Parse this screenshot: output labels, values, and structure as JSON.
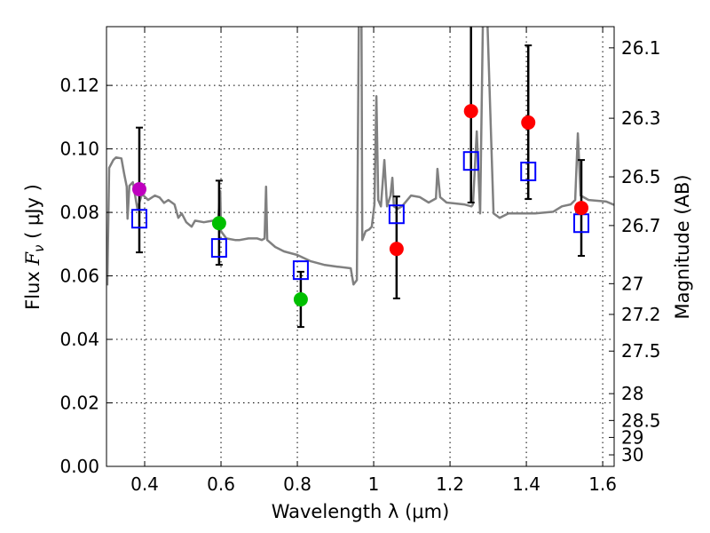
{
  "chart_data": {
    "type": "scatter",
    "xlabel": "Wavelength  λ (μm)",
    "ylabel": "Flux  F_ν  ( μJy )",
    "ylabel_parts": {
      "prefix": "Flux  ",
      "var": "F",
      "sub": "ν",
      "suffix": "  ( μJy )"
    },
    "y2label": "Magnitude (AB)",
    "xlim": [
      0.3,
      1.63
    ],
    "ylim": [
      0.0,
      0.1385
    ],
    "grid": true,
    "xticks": [
      0.4,
      0.6,
      0.8,
      1.0,
      1.2,
      1.4,
      1.6
    ],
    "xtick_labels": [
      "0.4",
      "0.6",
      "0.8",
      "1",
      "1.2",
      "1.4",
      "1.6"
    ],
    "yticks": [
      0,
      0.02,
      0.04,
      0.06,
      0.08,
      0.1,
      0.12
    ],
    "ytick_labels": [
      "0.00",
      "0.02",
      "0.04",
      "0.06",
      "0.08",
      "0.10",
      "0.12"
    ],
    "y2ticks": [
      26.1,
      26.3,
      26.5,
      26.7,
      27,
      27.2,
      27.5,
      28,
      28.5,
      29,
      30
    ],
    "y2tick_labels": [
      "26.1",
      "26.3",
      "26.5",
      "26.7",
      "27",
      "27.2",
      "27.5",
      "28",
      "28.5",
      "29",
      "30"
    ],
    "observed": [
      {
        "x": 0.386,
        "y": 0.0873,
        "ylo": 0.0674,
        "yhi": 0.1067,
        "color": "#bf00bf"
      },
      {
        "x": 0.595,
        "y": 0.0766,
        "ylo": 0.0635,
        "yhi": 0.09,
        "color": "#00bf00"
      },
      {
        "x": 0.809,
        "y": 0.0526,
        "ylo": 0.0439,
        "yhi": 0.0613,
        "color": "#00bf00"
      },
      {
        "x": 1.06,
        "y": 0.0685,
        "ylo": 0.0529,
        "yhi": 0.085,
        "color": "#ff0000"
      },
      {
        "x": 1.255,
        "y": 0.1119,
        "ylo": 0.0831,
        "yhi": 0.145,
        "color": "#ff0000"
      },
      {
        "x": 1.405,
        "y": 0.1083,
        "ylo": 0.0842,
        "yhi": 0.1326,
        "color": "#ff0000"
      },
      {
        "x": 1.544,
        "y": 0.0814,
        "ylo": 0.0663,
        "yhi": 0.0965,
        "color": "#ff0000"
      }
    ],
    "model": [
      {
        "x": 0.386,
        "y": 0.078
      },
      {
        "x": 0.595,
        "y": 0.0688
      },
      {
        "x": 0.809,
        "y": 0.0618
      },
      {
        "x": 1.06,
        "y": 0.0794
      },
      {
        "x": 1.255,
        "y": 0.0962
      },
      {
        "x": 1.405,
        "y": 0.0929
      },
      {
        "x": 1.544,
        "y": 0.0766
      }
    ],
    "model_color": "#0000ff",
    "spectrum_color": "#808080",
    "spectrum": [
      [
        0.302,
        0.057
      ],
      [
        0.307,
        0.094
      ],
      [
        0.318,
        0.0965
      ],
      [
        0.325,
        0.0973
      ],
      [
        0.339,
        0.097
      ],
      [
        0.346,
        0.0923
      ],
      [
        0.353,
        0.0881
      ],
      [
        0.355,
        0.078
      ],
      [
        0.36,
        0.0884
      ],
      [
        0.369,
        0.0895
      ],
      [
        0.381,
        0.0811
      ],
      [
        0.393,
        0.0858
      ],
      [
        0.409,
        0.0839
      ],
      [
        0.427,
        0.0853
      ],
      [
        0.439,
        0.0847
      ],
      [
        0.451,
        0.083
      ],
      [
        0.462,
        0.0839
      ],
      [
        0.478,
        0.0825
      ],
      [
        0.488,
        0.0783
      ],
      [
        0.497,
        0.0797
      ],
      [
        0.509,
        0.0769
      ],
      [
        0.523,
        0.0755
      ],
      [
        0.532,
        0.0774
      ],
      [
        0.555,
        0.0769
      ],
      [
        0.579,
        0.0774
      ],
      [
        0.591,
        0.0755
      ],
      [
        0.598,
        0.0867
      ],
      [
        0.6,
        0.0741
      ],
      [
        0.614,
        0.0718
      ],
      [
        0.637,
        0.0713
      ],
      [
        0.649,
        0.0713
      ],
      [
        0.672,
        0.0718
      ],
      [
        0.695,
        0.0718
      ],
      [
        0.707,
        0.0713
      ],
      [
        0.714,
        0.0718
      ],
      [
        0.718,
        0.0881
      ],
      [
        0.721,
        0.0713
      ],
      [
        0.742,
        0.0691
      ],
      [
        0.765,
        0.0677
      ],
      [
        0.8,
        0.0666
      ],
      [
        0.835,
        0.0646
      ],
      [
        0.87,
        0.0635
      ],
      [
        0.905,
        0.0629
      ],
      [
        0.94,
        0.0624
      ],
      [
        0.947,
        0.0573
      ],
      [
        0.956,
        0.0587
      ],
      [
        0.961,
        0.14
      ],
      [
        0.968,
        0.14
      ],
      [
        0.97,
        0.0713
      ],
      [
        0.979,
        0.0741
      ],
      [
        0.988,
        0.0746
      ],
      [
        0.995,
        0.0755
      ],
      [
        1.002,
        0.0825
      ],
      [
        1.007,
        0.1166
      ],
      [
        1.012,
        0.0839
      ],
      [
        1.019,
        0.0819
      ],
      [
        1.028,
        0.0965
      ],
      [
        1.035,
        0.0819
      ],
      [
        1.044,
        0.0853
      ],
      [
        1.049,
        0.0909
      ],
      [
        1.053,
        0.0819
      ],
      [
        1.063,
        0.0811
      ],
      [
        1.074,
        0.0819
      ],
      [
        1.098,
        0.0853
      ],
      [
        1.121,
        0.0848
      ],
      [
        1.144,
        0.0831
      ],
      [
        1.163,
        0.0844
      ],
      [
        1.167,
        0.0937
      ],
      [
        1.174,
        0.0848
      ],
      [
        1.191,
        0.0831
      ],
      [
        1.237,
        0.0825
      ],
      [
        1.256,
        0.0819
      ],
      [
        1.26,
        0.0825
      ],
      [
        1.27,
        0.1055
      ],
      [
        1.274,
        0.0937
      ],
      [
        1.279,
        0.0797
      ],
      [
        1.286,
        0.14
      ],
      [
        1.298,
        0.14
      ],
      [
        1.314,
        0.0797
      ],
      [
        1.33,
        0.0783
      ],
      [
        1.353,
        0.0797
      ],
      [
        1.423,
        0.0797
      ],
      [
        1.47,
        0.0802
      ],
      [
        1.493,
        0.0819
      ],
      [
        1.516,
        0.0825
      ],
      [
        1.528,
        0.0839
      ],
      [
        1.535,
        0.1049
      ],
      [
        1.542,
        0.0853
      ],
      [
        1.563,
        0.0839
      ],
      [
        1.609,
        0.0834
      ],
      [
        1.637,
        0.082
      ]
    ]
  }
}
